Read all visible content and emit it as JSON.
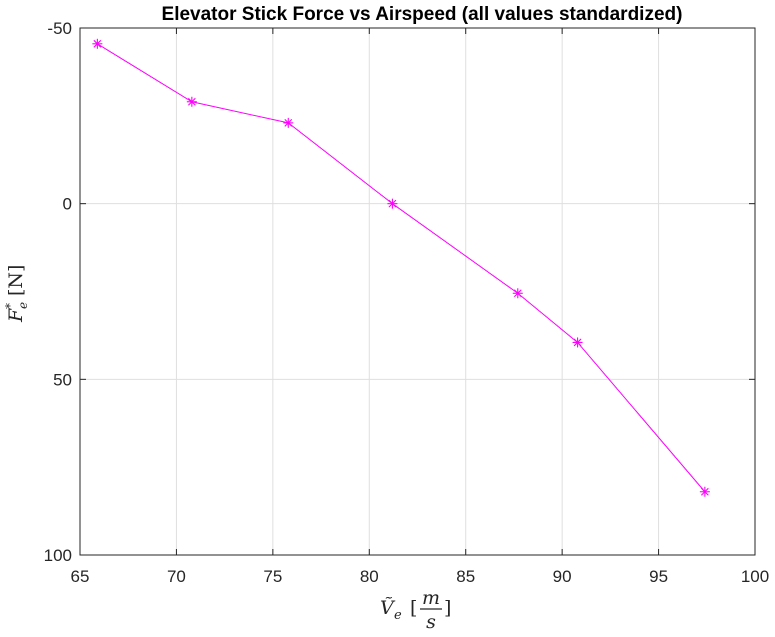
{
  "chart_data": {
    "type": "line",
    "title": "Elevator Stick Force vs Airspeed (all values standardized)",
    "xlabel": {
      "symbol": "Ṽ",
      "subscript": "e",
      "unit_open": "[",
      "unit_num": "m",
      "unit_den": "s",
      "unit_close": "]"
    },
    "ylabel": {
      "symbol": "F",
      "subscript": "e",
      "superscript": "*",
      "unit": "[N]"
    },
    "xlim": [
      65,
      100
    ],
    "ylim": [
      -50,
      100
    ],
    "y_reversed": true,
    "x_ticks": [
      65,
      70,
      75,
      80,
      85,
      90,
      95,
      100
    ],
    "y_ticks": [
      -50,
      0,
      50,
      100
    ],
    "x_tick_labels": [
      "65",
      "70",
      "75",
      "80",
      "85",
      "90",
      "95",
      "100"
    ],
    "y_tick_labels": [
      "-50",
      "0",
      "50",
      "100"
    ],
    "grid": true,
    "series": [
      {
        "color": "#ff00ff",
        "marker": "asterisk",
        "x": [
          65.9,
          70.8,
          75.8,
          81.2,
          87.7,
          90.8,
          97.4
        ],
        "y": [
          -45.5,
          -29,
          -23,
          0,
          25.5,
          39.5,
          82
        ]
      }
    ]
  }
}
